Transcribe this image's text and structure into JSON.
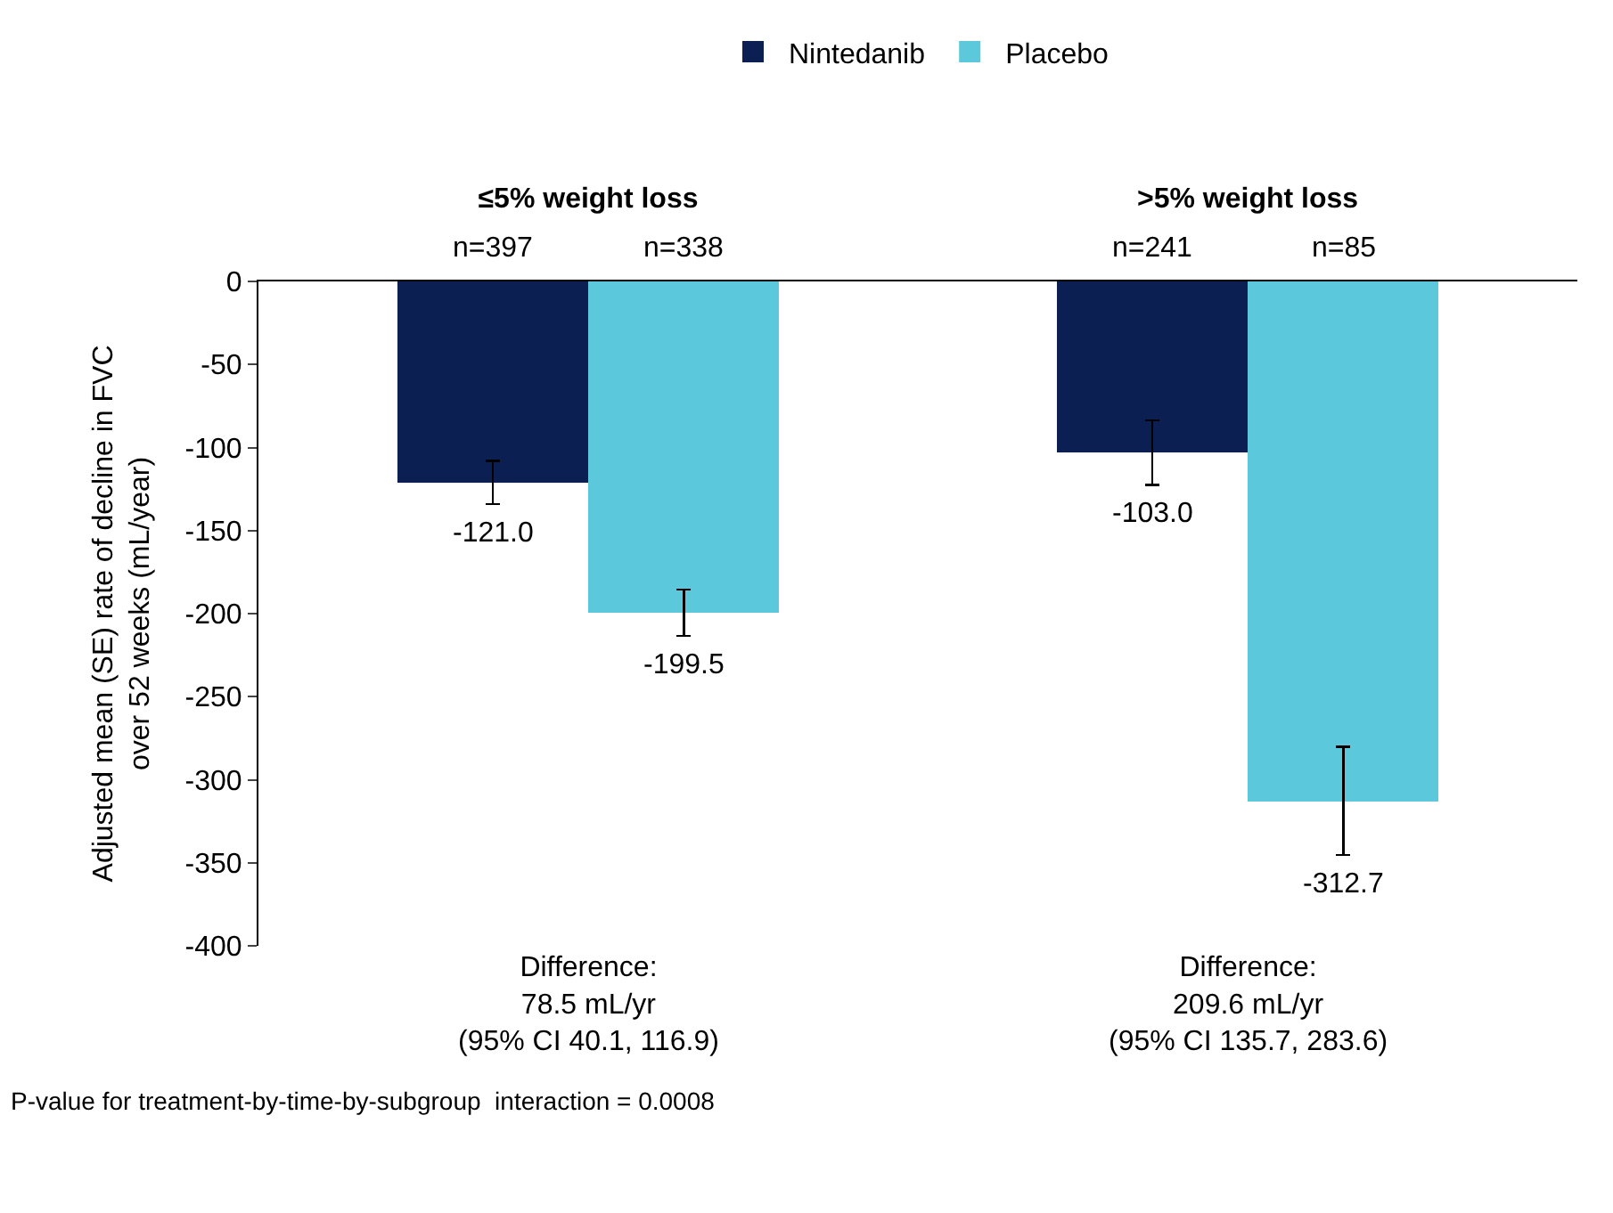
{
  "chart_data": {
    "type": "bar",
    "categories": [
      "≤5% weight loss",
      ">5% weight loss"
    ],
    "ylabel": "Adjusted mean (SE) rate of decline in FVC over 52 weeks (mL/year)",
    "series": [
      {
        "name": "Nintedanib",
        "color": "#0b1f52",
        "values": [
          -121.0,
          -103.0
        ],
        "errors": [
          13,
          19.5
        ],
        "value_labels": [
          "-121.0",
          "-103.0"
        ]
      },
      {
        "name": "Placebo",
        "color": "#5bc8db",
        "values": [
          -199.5,
          -312.7
        ],
        "errors": [
          14,
          32.5
        ],
        "value_labels": [
          "-199.5",
          "-312.7"
        ]
      }
    ],
    "ylim": [
      -400,
      0
    ],
    "yticks": [
      -400,
      -350,
      -300,
      -250,
      -200,
      -150,
      -100,
      -50,
      0
    ],
    "legend": "top",
    "annotations": [
      "n=397",
      "n=338",
      "n=241",
      "n=85",
      "Difference:\n78.5 mL/yr\n(95% CI 40.1, 116.9)",
      "Difference:\n209.6 mL/yr\n(95% CI 135.7, 283.6)",
      "P-value for treatment-by-time-by-subgroup  interaction = 0.0008"
    ]
  }
}
